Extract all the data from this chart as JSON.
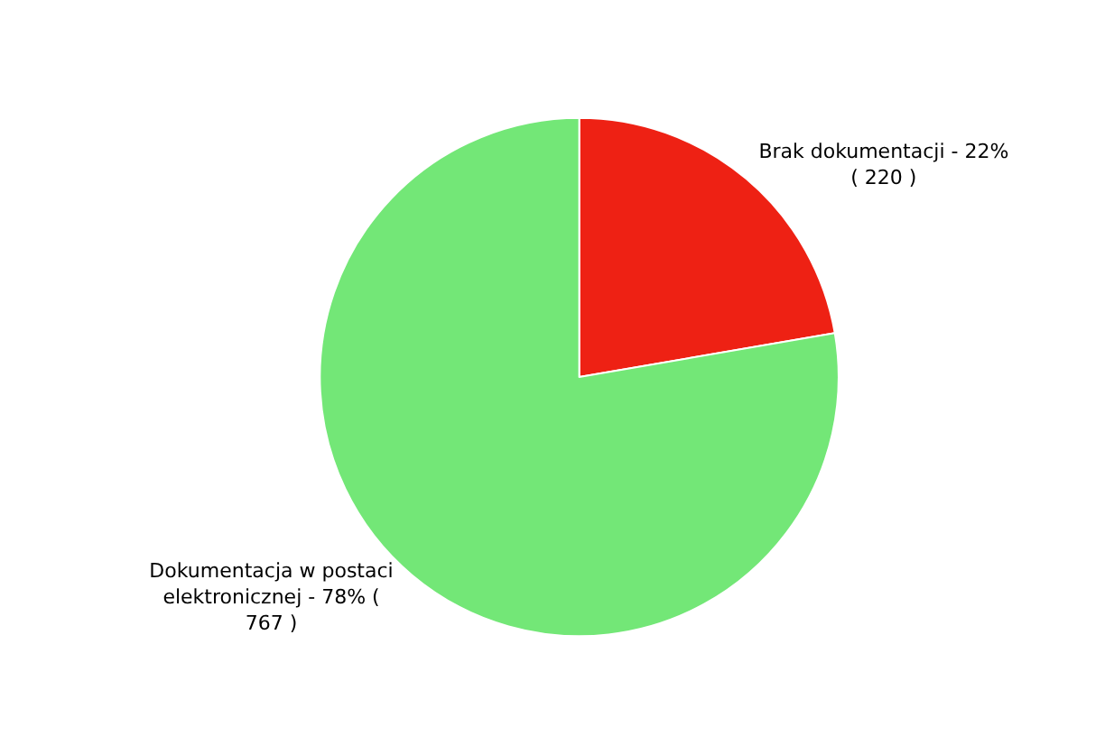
{
  "chart_data": {
    "type": "pie",
    "categories": [
      "Brak dokumentacji",
      "Dokumentacja w postaci elektronicznej"
    ],
    "values": [
      220,
      767
    ],
    "colors": [
      "#ee2114",
      "#73e777"
    ],
    "value_labels": [
      "22% ( 220 )",
      "78% ( 767 )"
    ],
    "legend": false
  }
}
